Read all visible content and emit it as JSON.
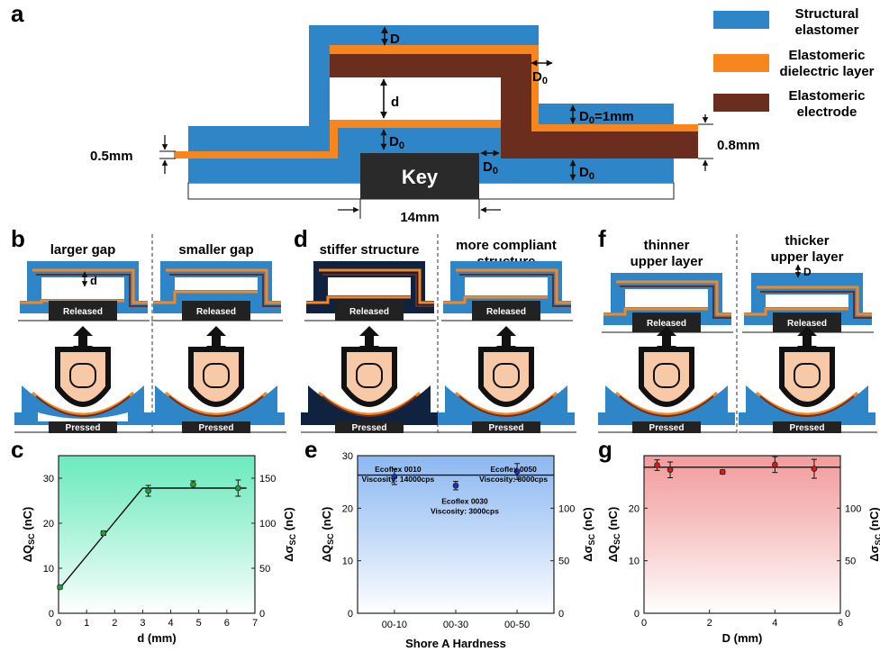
{
  "panel_letters": {
    "a": "a",
    "b": "b",
    "c": "c",
    "d": "d",
    "e": "e",
    "f": "f",
    "g": "g"
  },
  "panel_a": {
    "legend": [
      {
        "line1": "Structural",
        "line2": "elastomer",
        "color": "#2e86c9"
      },
      {
        "line1": "Elastomeric",
        "line2": "dielectric layer",
        "color": "#f7861f"
      },
      {
        "line1": "Elastomeric",
        "line2": "electrode",
        "color": "#6b2e1e"
      }
    ],
    "labels": {
      "D": "D",
      "D0": "D",
      "sub0": "0",
      "d": "d",
      "eq": "=1mm",
      "left_thk": "0.5mm",
      "right_thk": "0.8mm",
      "key": "Key",
      "width": "14mm"
    }
  },
  "panel_b": {
    "left_title": "larger gap",
    "right_title": "smaller gap",
    "gap_label": "d"
  },
  "panel_d": {
    "left_title": "stiffer structure",
    "right_title_1": "more compliant",
    "right_title_2": "structure"
  },
  "panel_f": {
    "left_title_1": "thinner",
    "left_title_2": "upper layer",
    "right_title_1": "thicker",
    "right_title_2": "upper layer",
    "d_label": "D"
  },
  "state_labels": {
    "released": "Released",
    "pressed": "Pressed"
  },
  "chart_data": [
    {
      "type": "scatter",
      "panel": "c",
      "xlabel": "d (mm)",
      "ylabel": "ΔQ",
      "ylabel_sub": "SC",
      "ylabel_unit": " (nC)",
      "y2label": "Δσ",
      "y2label_sub": "SC",
      "y2label_unit": " (nC)",
      "xlim": [
        0,
        7
      ],
      "ylim": [
        0,
        35
      ],
      "y2lim": [
        0,
        175
      ],
      "xticks": [
        0,
        1,
        2,
        3,
        4,
        5,
        6,
        7
      ],
      "yticks": [
        0,
        10,
        20,
        30
      ],
      "y2ticks": [
        0,
        50,
        100,
        150
      ],
      "bg_color": "#52e6b2",
      "points": [
        {
          "x": 0.05,
          "y": 5.8,
          "err": 0.4
        },
        {
          "x": 1.6,
          "y": 17.8,
          "err": 0.5
        },
        {
          "x": 3.2,
          "y": 27.2,
          "err": 1.2
        },
        {
          "x": 4.8,
          "y": 28.6,
          "err": 0.8
        },
        {
          "x": 6.4,
          "y": 27.8,
          "err": 1.8
        }
      ],
      "fit": [
        {
          "x": 0,
          "y": 5.2
        },
        {
          "x": 3.0,
          "y": 27.8
        },
        {
          "x": 6.7,
          "y": 27.8
        }
      ],
      "point_color": "#2a9a3a"
    },
    {
      "type": "scatter",
      "panel": "e",
      "xlabel": "Shore A Hardness",
      "ylabel": "ΔQ",
      "ylabel_sub": "SC",
      "ylabel_unit": " (nC)",
      "y2label": "Δσ",
      "y2label_sub": "SC",
      "y2label_unit": " (nC)",
      "categories": [
        "00-10",
        "00-30",
        "00-50"
      ],
      "ylim": [
        0,
        30
      ],
      "y2lim": [
        0,
        150
      ],
      "yticks": [
        0,
        10,
        20,
        30
      ],
      "y2ticks": [
        0,
        50,
        100
      ],
      "bg_color": "#7fb0f0",
      "points": [
        {
          "x": 0,
          "y": 26.0,
          "err": 1.5
        },
        {
          "x": 1,
          "y": 24.3,
          "err": 0.8
        },
        {
          "x": 2,
          "y": 27.0,
          "err": 1.5
        }
      ],
      "fit_y": 26.3,
      "point_color": "#2030b0",
      "annotations": [
        {
          "line1": "Ecoflex 0010",
          "line2": "Viscosity: 14000cps"
        },
        {
          "line1": "Ecoflex 0030",
          "line2": "Viscosity: 3000cps"
        },
        {
          "line1": "Ecoflex 0050",
          "line2": "Viscosity: 8000cps"
        }
      ]
    },
    {
      "type": "scatter",
      "panel": "g",
      "xlabel": "D (mm)",
      "ylabel": "ΔQ",
      "ylabel_sub": "SC",
      "ylabel_unit": " (nC)",
      "y2label": "Δσ",
      "y2label_sub": "SC",
      "y2label_unit": " (nC)",
      "xlim": [
        0,
        6
      ],
      "ylim": [
        0,
        30
      ],
      "y2lim": [
        0,
        150
      ],
      "xticks": [
        0,
        2,
        4,
        6
      ],
      "yticks": [
        0,
        10,
        20
      ],
      "y2ticks": [
        0,
        50,
        100
      ],
      "bg_color": "#f08a8a",
      "points": [
        {
          "x": 0.4,
          "y": 28.2,
          "err": 1.0
        },
        {
          "x": 0.8,
          "y": 27.3,
          "err": 1.5
        },
        {
          "x": 2.4,
          "y": 26.9,
          "err": 0.4
        },
        {
          "x": 4.0,
          "y": 28.3,
          "err": 1.5
        },
        {
          "x": 5.2,
          "y": 27.5,
          "err": 1.8
        }
      ],
      "fit_y": 27.8,
      "point_color": "#c82020"
    }
  ]
}
